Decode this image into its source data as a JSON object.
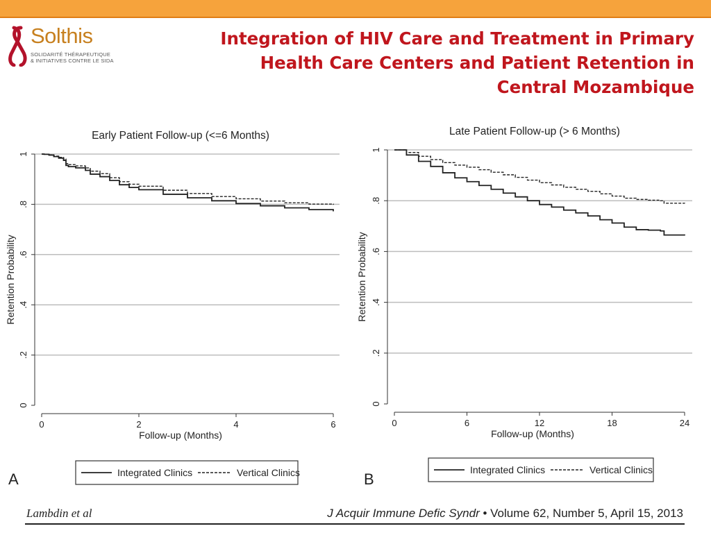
{
  "header": {
    "title_lines": [
      "Integration of HIV Care and Treatment in Primary",
      "Health Care Centers and Patient Retention in",
      "Central Mozambique"
    ]
  },
  "logo": {
    "name": "Solthis",
    "tagline_1": "SOLIDARITÉ  THÉRAPEUTIQUE",
    "tagline_2": "& INITIATIVES CONTRE LE SIDA",
    "colors": {
      "ribbon": "#b3122b",
      "text": "#c7801f"
    }
  },
  "footer": {
    "author": "Lambdin et al",
    "journal": "J Acquir Immune Defic Syndr",
    "bullet": " • ",
    "details": "Volume 62, Number 5, April 15, 2013"
  },
  "colors": {
    "top_bar": "#f6a33c",
    "title": "#c0161d",
    "grid": "#bdbdbd"
  },
  "chart_data": [
    {
      "type": "line",
      "panel": "A",
      "title": "Early Patient Follow-up (<=6 Months)",
      "xlabel": "Follow-up (Months)",
      "ylabel": "Retention Probability",
      "xlim": [
        0,
        6
      ],
      "ylim": [
        0,
        1
      ],
      "xticks": [
        0,
        2,
        4,
        6
      ],
      "xtick_labels": [
        "0",
        "2",
        "4",
        "6"
      ],
      "yticks": [
        0,
        0.2,
        0.4,
        0.6,
        0.8,
        1
      ],
      "ytick_labels": [
        "0",
        ".2",
        ".4",
        ".6",
        ".8",
        "1"
      ],
      "grid": true,
      "legend": "bottom",
      "series": [
        {
          "name": "Integrated Clinics",
          "style": "solid",
          "x": [
            0,
            0.05,
            0.15,
            0.25,
            0.35,
            0.45,
            0.5,
            0.55,
            0.7,
            0.9,
            1.0,
            1.2,
            1.4,
            1.6,
            1.8,
            2.0,
            2.5,
            3.0,
            3.5,
            4.0,
            4.5,
            5.0,
            5.5,
            6.0
          ],
          "y": [
            1.0,
            0.999,
            0.996,
            0.99,
            0.984,
            0.975,
            0.955,
            0.95,
            0.945,
            0.935,
            0.92,
            0.91,
            0.895,
            0.878,
            0.867,
            0.858,
            0.84,
            0.826,
            0.814,
            0.803,
            0.794,
            0.786,
            0.779,
            0.772
          ]
        },
        {
          "name": "Vertical Clinics",
          "style": "dashed",
          "x": [
            0,
            0.05,
            0.15,
            0.25,
            0.35,
            0.45,
            0.5,
            0.55,
            0.7,
            0.9,
            1.0,
            1.2,
            1.4,
            1.6,
            1.8,
            2.0,
            2.5,
            3.0,
            3.5,
            4.0,
            4.5,
            5.0,
            5.5,
            6.0
          ],
          "y": [
            1.0,
            0.999,
            0.997,
            0.992,
            0.987,
            0.98,
            0.962,
            0.958,
            0.953,
            0.945,
            0.932,
            0.922,
            0.906,
            0.89,
            0.88,
            0.872,
            0.856,
            0.843,
            0.831,
            0.822,
            0.813,
            0.806,
            0.801,
            0.798
          ]
        }
      ]
    },
    {
      "type": "line",
      "panel": "B",
      "title": "Late Patient Follow-up (> 6 Months)",
      "xlabel": "Follow-up (Months)",
      "ylabel": "Retention Probability",
      "xlim": [
        0,
        24
      ],
      "ylim": [
        0,
        1
      ],
      "xticks": [
        0,
        6,
        12,
        18,
        24
      ],
      "xtick_labels": [
        "0",
        "6",
        "12",
        "18",
        "24"
      ],
      "yticks": [
        0,
        0.2,
        0.4,
        0.6,
        0.8,
        1
      ],
      "ytick_labels": [
        "0",
        ".2",
        ".4",
        ".6",
        ".8",
        "1"
      ],
      "grid": true,
      "legend": "bottom",
      "series": [
        {
          "name": "Integrated Clinics",
          "style": "solid",
          "x": [
            0,
            1,
            2,
            3,
            4,
            5,
            6,
            7,
            8,
            9,
            10,
            11,
            12,
            13,
            14,
            15,
            16,
            17,
            18,
            19,
            20,
            21,
            22,
            22.3,
            24
          ],
          "y": [
            1.0,
            0.98,
            0.955,
            0.935,
            0.91,
            0.89,
            0.875,
            0.86,
            0.845,
            0.83,
            0.815,
            0.8,
            0.785,
            0.775,
            0.763,
            0.752,
            0.74,
            0.725,
            0.712,
            0.696,
            0.686,
            0.684,
            0.681,
            0.665,
            0.663
          ]
        },
        {
          "name": "Vertical Clinics",
          "style": "dashed",
          "x": [
            0,
            1,
            2,
            3,
            4,
            5,
            6,
            7,
            8,
            9,
            10,
            11,
            12,
            13,
            14,
            15,
            16,
            17,
            18,
            19,
            20,
            21,
            22,
            22.3,
            24
          ],
          "y": [
            1.0,
            0.99,
            0.975,
            0.962,
            0.95,
            0.94,
            0.932,
            0.922,
            0.912,
            0.902,
            0.892,
            0.881,
            0.871,
            0.862,
            0.853,
            0.845,
            0.837,
            0.827,
            0.818,
            0.81,
            0.805,
            0.802,
            0.8,
            0.79,
            0.789
          ]
        }
      ]
    }
  ]
}
